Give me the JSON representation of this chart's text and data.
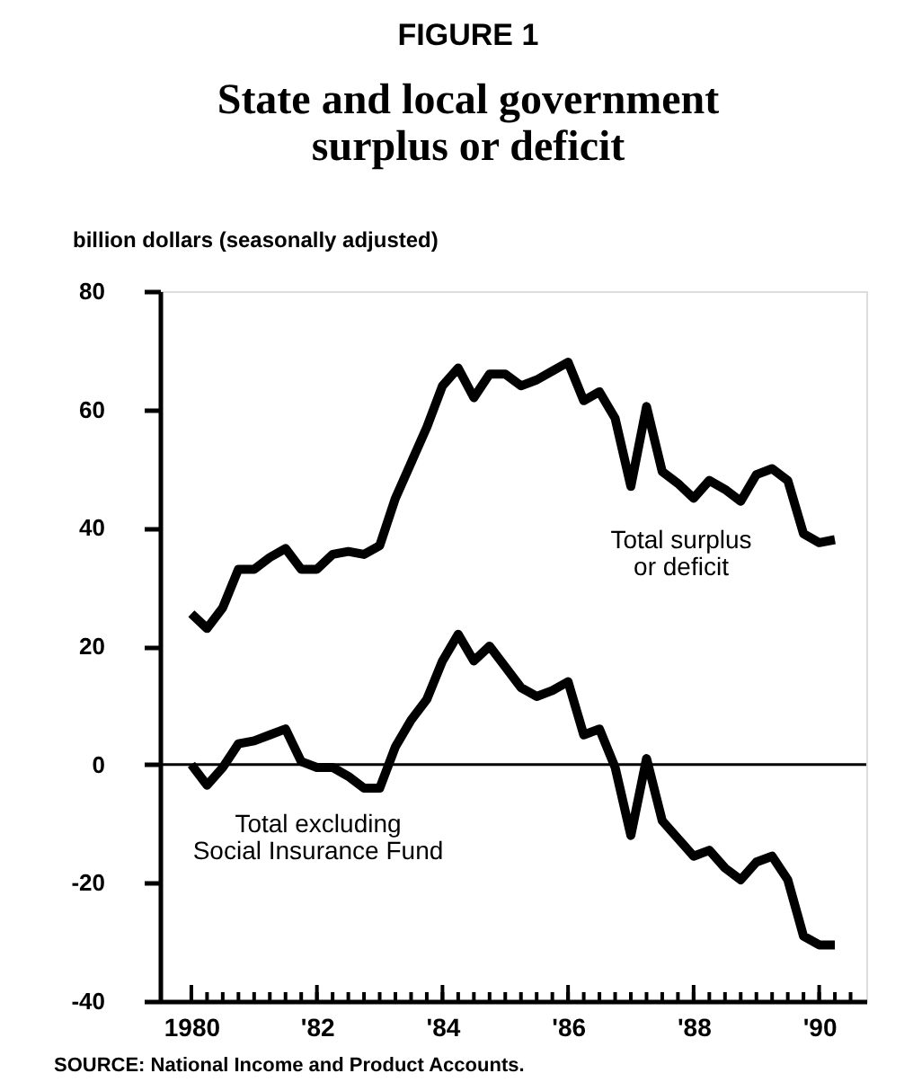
{
  "chart_data": {
    "type": "line",
    "title": "FIGURE 1",
    "subtitle": "State and local government surplus or deficit",
    "ylabel": "billion dollars (seasonally adjusted)",
    "x": [
      1980,
      1980.25,
      1980.5,
      1980.75,
      1981,
      1981.25,
      1981.5,
      1981.75,
      1982,
      1982.25,
      1982.5,
      1982.75,
      1983,
      1983.25,
      1983.5,
      1983.75,
      1984,
      1984.25,
      1984.5,
      1984.75,
      1985,
      1985.25,
      1985.5,
      1985.75,
      1986,
      1986.25,
      1986.5,
      1986.75,
      1987,
      1987.25,
      1987.5,
      1987.75,
      1988,
      1988.25,
      1988.5,
      1988.75,
      1989,
      1989.25,
      1989.5,
      1989.75,
      1990,
      1990.25
    ],
    "series": [
      {
        "name": "Total surplus or deficit",
        "color": "#000000",
        "values": [
          25.5,
          23,
          26.5,
          33,
          33,
          35,
          36.5,
          33,
          33,
          35.5,
          36,
          35.5,
          37,
          45,
          51,
          57,
          64,
          67,
          62,
          66,
          66,
          64,
          65,
          66.5,
          68,
          61.5,
          63,
          58.5,
          47,
          60.5,
          49.5,
          47.5,
          45,
          48,
          46.5,
          44.5,
          49,
          50,
          48,
          39,
          37.5,
          38
        ]
      },
      {
        "name": "Total excluding Social Insurance Fund",
        "color": "#000000",
        "values": [
          0,
          -3.5,
          -0.5,
          3.5,
          4,
          5,
          6,
          0.5,
          -0.5,
          -0.5,
          -2,
          -4,
          -4,
          3,
          7.5,
          11,
          17.5,
          22,
          17.5,
          20,
          16.5,
          13,
          11.5,
          12.5,
          14,
          5,
          6,
          -0.5,
          -12,
          1,
          -9.5,
          -12.5,
          -15.5,
          -14.5,
          -17.5,
          -19.5,
          -16.5,
          -15.5,
          -19.5,
          -29,
          -30.5,
          -30.5
        ]
      }
    ],
    "xlim": [
      1979.5,
      1990.75
    ],
    "xticks": [
      {
        "value": 1980,
        "label": "1980"
      },
      {
        "value": 1980.25,
        "label": null
      },
      {
        "value": 1980.5,
        "label": null
      },
      {
        "value": 1980.75,
        "label": null
      },
      {
        "value": 1981,
        "label": null
      },
      {
        "value": 1981.25,
        "label": null
      },
      {
        "value": 1981.5,
        "label": null
      },
      {
        "value": 1981.75,
        "label": null
      },
      {
        "value": 1982,
        "label": "'82"
      },
      {
        "value": 1982.25,
        "label": null
      },
      {
        "value": 1982.5,
        "label": null
      },
      {
        "value": 1982.75,
        "label": null
      },
      {
        "value": 1983,
        "label": null
      },
      {
        "value": 1983.25,
        "label": null
      },
      {
        "value": 1983.5,
        "label": null
      },
      {
        "value": 1983.75,
        "label": null
      },
      {
        "value": 1984,
        "label": "'84"
      },
      {
        "value": 1984.25,
        "label": null
      },
      {
        "value": 1984.5,
        "label": null
      },
      {
        "value": 1984.75,
        "label": null
      },
      {
        "value": 1985,
        "label": null
      },
      {
        "value": 1985.25,
        "label": null
      },
      {
        "value": 1985.5,
        "label": null
      },
      {
        "value": 1985.75,
        "label": null
      },
      {
        "value": 1986,
        "label": "'86"
      },
      {
        "value": 1986.25,
        "label": null
      },
      {
        "value": 1986.5,
        "label": null
      },
      {
        "value": 1986.75,
        "label": null
      },
      {
        "value": 1987,
        "label": null
      },
      {
        "value": 1987.25,
        "label": null
      },
      {
        "value": 1987.5,
        "label": null
      },
      {
        "value": 1987.75,
        "label": null
      },
      {
        "value": 1988,
        "label": "'88"
      },
      {
        "value": 1988.25,
        "label": null
      },
      {
        "value": 1988.5,
        "label": null
      },
      {
        "value": 1988.75,
        "label": null
      },
      {
        "value": 1989,
        "label": null
      },
      {
        "value": 1989.25,
        "label": null
      },
      {
        "value": 1989.5,
        "label": null
      },
      {
        "value": 1989.75,
        "label": null
      },
      {
        "value": 1990,
        "label": "'90"
      },
      {
        "value": 1990.25,
        "label": null
      },
      {
        "value": 1990.5,
        "label": null
      }
    ],
    "ylim": [
      -40,
      80
    ],
    "yticks": [
      -40,
      -20,
      0,
      20,
      40,
      60,
      80
    ],
    "ref_lines": [
      {
        "axis": "y",
        "value": 0,
        "color": "#000000"
      }
    ],
    "annotations": [
      "SOURCE: National Income and Product Accounts."
    ],
    "grid": false,
    "marker": "none",
    "line_style": "solid"
  }
}
